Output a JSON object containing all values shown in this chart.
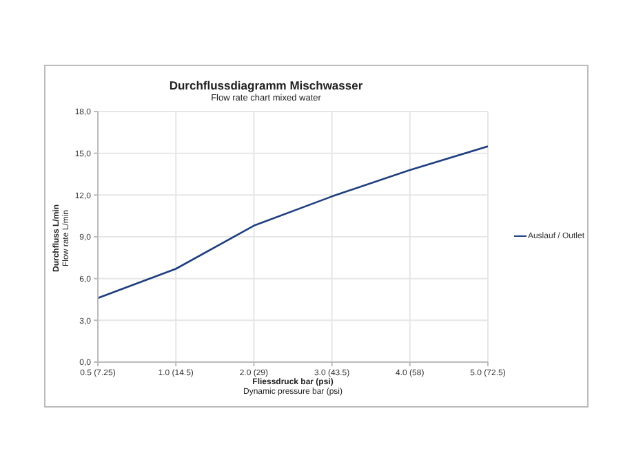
{
  "chart_data": {
    "type": "line",
    "title": "Durchflussdiagramm Mischwasser",
    "subtitle": "Flow rate chart mixed water",
    "xlabel": "Fliessdruck bar (psi)\nDynamic pressure bar (psi)",
    "ylabel": "Durchfluss L/min\nFlow rate L/min",
    "categories": [
      "0.5 (7.25)",
      "1.0 (14.5)",
      "2.0 (29)",
      "3.0 (43.5)",
      "4.0 (58)",
      "5.0 (72.5)"
    ],
    "series": [
      {
        "name": "Auslauf / Outlet",
        "color": "#1f3f7f",
        "values": [
          4.6,
          6.7,
          9.8,
          11.9,
          13.8,
          15.5
        ]
      }
    ],
    "ylim": [
      0,
      18
    ],
    "yticks": [
      {
        "value": 0,
        "label": "0,0"
      },
      {
        "value": 3,
        "label": "3,0"
      },
      {
        "value": 6,
        "label": "6,0"
      },
      {
        "value": 9,
        "label": "9,0"
      },
      {
        "value": 12,
        "label": "12,0"
      },
      {
        "value": 15,
        "label": "15,0"
      },
      {
        "value": 18,
        "label": "18,0"
      }
    ],
    "grid": true,
    "legend": "right",
    "marker": "none",
    "line_style": "solid"
  }
}
